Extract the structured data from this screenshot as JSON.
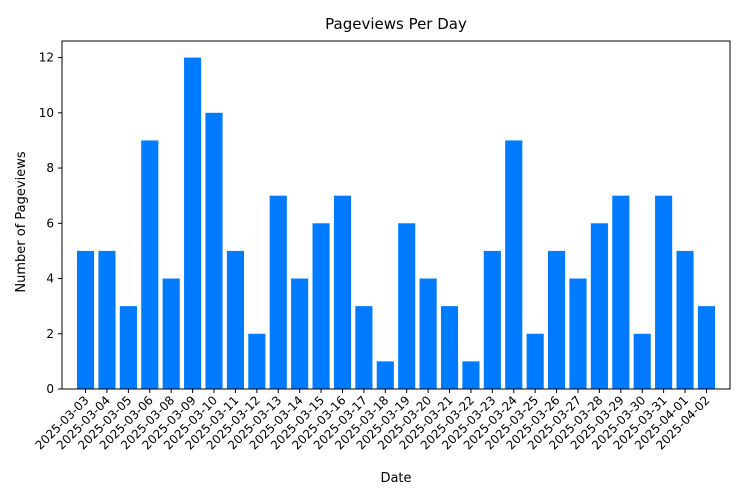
{
  "chart_data": {
    "type": "bar",
    "title": "Pageviews Per Day",
    "xlabel": "Date",
    "ylabel": "Number of Pageviews",
    "bar_color": "#007bff",
    "ylim": [
      0,
      12.6
    ],
    "yticks": [
      0,
      2,
      4,
      6,
      8,
      10,
      12
    ],
    "grid": false,
    "categories": [
      "2025-03-03",
      "2025-03-04",
      "2025-03-05",
      "2025-03-06",
      "2025-03-08",
      "2025-03-09",
      "2025-03-10",
      "2025-03-11",
      "2025-03-12",
      "2025-03-13",
      "2025-03-14",
      "2025-03-15",
      "2025-03-16",
      "2025-03-17",
      "2025-03-18",
      "2025-03-19",
      "2025-03-20",
      "2025-03-21",
      "2025-03-22",
      "2025-03-23",
      "2025-03-24",
      "2025-03-25",
      "2025-03-26",
      "2025-03-27",
      "2025-03-28",
      "2025-03-29",
      "2025-03-30",
      "2025-03-31",
      "2025-04-01",
      "2025-04-02"
    ],
    "values": [
      5,
      5,
      3,
      9,
      4,
      12,
      10,
      5,
      2,
      7,
      4,
      6,
      7,
      3,
      1,
      6,
      4,
      3,
      1,
      5,
      9,
      2,
      5,
      4,
      6,
      7,
      2,
      7,
      5,
      3
    ]
  }
}
